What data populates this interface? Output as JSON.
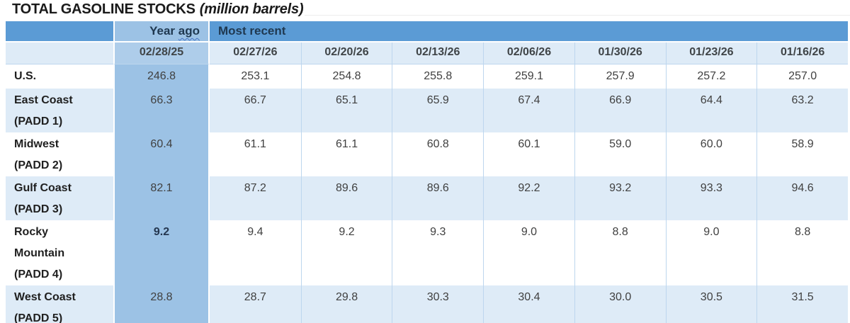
{
  "title": {
    "main": "TOTAL GASOLINE STOCKS",
    "unit": "(million barrels)"
  },
  "table": {
    "col_groups": {
      "year_ago_word1": "Year",
      "year_ago_word2": "ago",
      "most_recent": "Most recent"
    },
    "year_ago_date": "02/28/25",
    "recent_dates": [
      "02/27/26",
      "02/20/26",
      "02/13/26",
      "02/06/26",
      "01/30/26",
      "01/23/26",
      "01/16/26"
    ],
    "rows": [
      {
        "label_lines": [
          "U.S."
        ],
        "year_ago": "246.8",
        "values": [
          "253.1",
          "254.8",
          "255.8",
          "259.1",
          "257.9",
          "257.2",
          "257.0"
        ]
      },
      {
        "label_lines": [
          "East Coast",
          "(PADD 1)"
        ],
        "year_ago": "66.3",
        "values": [
          "66.7",
          "65.1",
          "65.9",
          "67.4",
          "66.9",
          "64.4",
          "63.2"
        ]
      },
      {
        "label_lines": [
          "Midwest",
          "(PADD 2)"
        ],
        "year_ago": "60.4",
        "values": [
          "61.1",
          "61.1",
          "60.8",
          "60.1",
          "59.0",
          "60.0",
          "58.9"
        ]
      },
      {
        "label_lines": [
          "Gulf Coast",
          "(PADD 3)"
        ],
        "year_ago": "82.1",
        "values": [
          "87.2",
          "89.6",
          "89.6",
          "92.2",
          "93.2",
          "93.3",
          "94.6"
        ]
      },
      {
        "label_lines": [
          "Rocky",
          "Mountain",
          "(PADD 4)"
        ],
        "year_ago": "9.2",
        "values": [
          "9.4",
          "9.2",
          "9.3",
          "9.0",
          "8.8",
          "9.0",
          "8.8"
        ]
      },
      {
        "label_lines": [
          "West Coast",
          "(PADD 5)"
        ],
        "year_ago": "28.8",
        "values": [
          "28.7",
          "29.8",
          "30.3",
          "30.4",
          "30.0",
          "30.5",
          "31.5"
        ]
      }
    ]
  },
  "colors": {
    "header_blue": "#5B9BD5",
    "year_ago_column_blue": "#9CC2E5",
    "year_ago_date_blue": "#AECDEA",
    "light_row_blue": "#DEEBF7",
    "grid_line_blue": "#BDD6EE",
    "header_text_navy": "#1F3850",
    "squiggle_blue": "#4472C4"
  },
  "chart_data": {
    "type": "table",
    "title": "TOTAL GASOLINE STOCKS (million barrels)",
    "column_groups": [
      "Year ago",
      "Most recent"
    ],
    "columns": [
      "02/28/25",
      "02/27/26",
      "02/20/26",
      "02/13/26",
      "02/06/26",
      "01/30/26",
      "01/23/26",
      "01/16/26"
    ],
    "rows": [
      {
        "label": "U.S.",
        "values": [
          246.8,
          253.1,
          254.8,
          255.8,
          259.1,
          257.9,
          257.2,
          257.0
        ]
      },
      {
        "label": "East Coast (PADD 1)",
        "values": [
          66.3,
          66.7,
          65.1,
          65.9,
          67.4,
          66.9,
          64.4,
          63.2
        ]
      },
      {
        "label": "Midwest (PADD 2)",
        "values": [
          60.4,
          61.1,
          61.1,
          60.8,
          60.1,
          59.0,
          60.0,
          58.9
        ]
      },
      {
        "label": "Gulf Coast (PADD 3)",
        "values": [
          82.1,
          87.2,
          89.6,
          89.6,
          92.2,
          93.2,
          93.3,
          94.6
        ]
      },
      {
        "label": "Rocky Mountain (PADD 4)",
        "values": [
          9.2,
          9.4,
          9.2,
          9.3,
          9.0,
          8.8,
          9.0,
          8.8
        ]
      },
      {
        "label": "West Coast (PADD 5)",
        "values": [
          28.8,
          28.7,
          29.8,
          30.3,
          30.4,
          30.0,
          30.5,
          31.5
        ]
      }
    ]
  }
}
